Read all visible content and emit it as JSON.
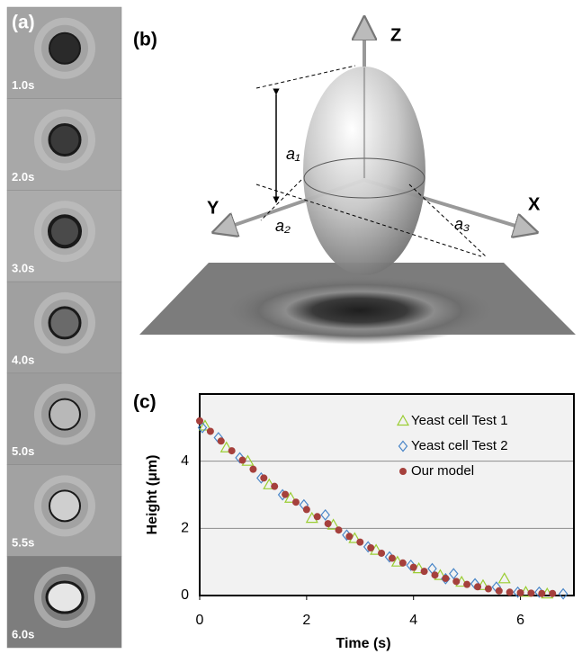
{
  "panel_a": {
    "label": "(a)",
    "frames": [
      "1.0s",
      "2.0s",
      "3.0s",
      "4.0s",
      "5.0s",
      "5.5s",
      "6.0s"
    ]
  },
  "panel_b": {
    "label": "(b)",
    "axes": {
      "z": "Z",
      "y": "Y",
      "x": "X"
    },
    "semi_axes": [
      "a₁",
      "a₂",
      "a₃"
    ]
  },
  "chart_data": {
    "type": "scatter",
    "panel_label": "(c)",
    "x_label": "Time (s)",
    "y_label": "Height (μm)",
    "xlim": [
      0,
      7
    ],
    "ylim": [
      0,
      6
    ],
    "xticks": [
      0,
      2,
      4,
      6
    ],
    "yticks": [
      0,
      2,
      4
    ],
    "grid": true,
    "legend": "upper right",
    "series": [
      {
        "name": "Yeast cell Test 1",
        "color": "#9acd32",
        "marker": "triangle",
        "x": [
          0.1,
          0.5,
          0.9,
          1.3,
          1.7,
          2.1,
          2.5,
          2.9,
          3.3,
          3.7,
          4.1,
          4.5,
          4.9,
          5.3,
          5.7,
          6.1,
          6.5
        ],
        "values": [
          5.05,
          4.4,
          4.0,
          3.3,
          2.9,
          2.3,
          2.1,
          1.7,
          1.35,
          1.0,
          0.8,
          0.6,
          0.4,
          0.3,
          0.5,
          0.1,
          0.05
        ]
      },
      {
        "name": "Yeast cell Test 2",
        "color": "#4a86c8",
        "marker": "diamond",
        "x": [
          0.05,
          0.35,
          0.75,
          1.15,
          1.55,
          1.95,
          2.35,
          2.75,
          3.15,
          3.55,
          3.95,
          4.35,
          4.6,
          4.75,
          5.15,
          5.55,
          5.95,
          6.35,
          6.8
        ],
        "values": [
          5.0,
          4.7,
          4.1,
          3.5,
          3.0,
          2.7,
          2.4,
          1.8,
          1.45,
          1.15,
          0.9,
          0.8,
          0.5,
          0.65,
          0.35,
          0.25,
          0.1,
          0.1,
          0.05
        ]
      },
      {
        "name": "Our model",
        "color": "#a5403c",
        "marker": "circle",
        "x": [
          0,
          0.2,
          0.4,
          0.6,
          0.8,
          1.0,
          1.2,
          1.4,
          1.6,
          1.8,
          2.0,
          2.2,
          2.4,
          2.6,
          2.8,
          3.0,
          3.2,
          3.4,
          3.6,
          3.8,
          4.0,
          4.2,
          4.4,
          4.6,
          4.8,
          5.0,
          5.2,
          5.4,
          5.6,
          5.8,
          6.0,
          6.2,
          6.4,
          6.6
        ],
        "values": [
          5.2,
          4.89,
          4.6,
          4.31,
          4.03,
          3.76,
          3.5,
          3.25,
          3.01,
          2.78,
          2.56,
          2.35,
          2.14,
          1.95,
          1.76,
          1.59,
          1.42,
          1.26,
          1.11,
          0.97,
          0.84,
          0.72,
          0.61,
          0.51,
          0.42,
          0.33,
          0.26,
          0.2,
          0.14,
          0.1,
          0.08,
          0.07,
          0.06,
          0.06
        ]
      }
    ]
  }
}
